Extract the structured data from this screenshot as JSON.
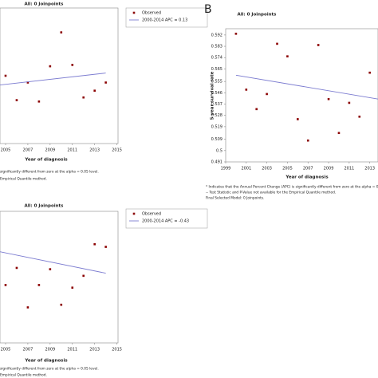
{
  "chart_data": [
    {
      "type": "scatter",
      "title": "All: 0 Joinpoints",
      "x_label": "Year of diagnosis",
      "xlim": [
        2004.5,
        2015.1
      ],
      "xticks": [
        2005,
        2007,
        2009,
        2011,
        2013,
        2015
      ],
      "ylim": [
        0,
        100
      ],
      "series": [
        {
          "name": "Observed",
          "type": "scatter",
          "color": "#8b0000",
          "x": [
            2005,
            2006,
            2007,
            2008,
            2009,
            2010,
            2011,
            2012,
            2013,
            2014
          ],
          "values": [
            50,
            32,
            45,
            31,
            57,
            82,
            58,
            34,
            39,
            45
          ]
        },
        {
          "name": "2000-2014 APC = 0.13",
          "type": "line",
          "color": "#7b7bd0",
          "x": [
            2000,
            2014
          ],
          "values": [
            39,
            52
          ]
        }
      ],
      "notes": [
        "significantly different from zero at the alpha = 0.05 level.",
        "Empirical Quantile method."
      ]
    },
    {
      "type": "scatter",
      "label": "B",
      "title": "All: 0 Joinpoints",
      "x_label": "Year of diagnosis",
      "y_label": "5 year survival rate",
      "xlim": [
        1999,
        2013.8
      ],
      "xticks": [
        1999,
        2001,
        2003,
        2005,
        2007,
        2009,
        2011,
        2013
      ],
      "ylim": [
        0.491,
        0.597
      ],
      "yticks": [
        0.491,
        0.5,
        0.509,
        0.519,
        0.528,
        0.537,
        0.546,
        0.555,
        0.565,
        0.574,
        0.583,
        0.592
      ],
      "series": [
        {
          "type": "scatter",
          "color": "#8b0000",
          "x": [
            2000,
            2001,
            2002,
            2003,
            2004,
            2005,
            2006,
            2007,
            2008,
            2009,
            2010,
            2011,
            2012,
            2013
          ],
          "values": [
            0.593,
            0.5485,
            0.533,
            0.545,
            0.585,
            0.575,
            0.525,
            0.508,
            0.584,
            0.541,
            0.514,
            0.538,
            0.527,
            0.562
          ]
        },
        {
          "type": "line",
          "color": "#7b7bd0",
          "x": [
            2000,
            2013.8
          ],
          "values": [
            0.56,
            0.541
          ]
        }
      ],
      "notes": [
        "* Indicates that the Annual Percent Change (APC) is significantly different from zero at the alpha = 0.05 level.",
        "-- Test Statistic and P-Value not available for the Empirical Quantile method.",
        "Final Selected Model: 0 Joinpoints."
      ]
    },
    {
      "type": "scatter",
      "title": "All: 0 Joinpoints",
      "x_label": "Year of diagnosis",
      "xlim": [
        2004.5,
        2015.1
      ],
      "xticks": [
        2005,
        2007,
        2009,
        2011,
        2013,
        2015
      ],
      "ylim": [
        0,
        100
      ],
      "series": [
        {
          "name": "Observed",
          "type": "scatter",
          "color": "#8b0000",
          "x": [
            2005,
            2006,
            2007,
            2008,
            2009,
            2010,
            2011,
            2012,
            2013,
            2014
          ],
          "values": [
            44,
            57,
            27,
            44,
            56,
            29,
            42,
            51,
            75,
            73
          ]
        },
        {
          "name": "2000-2014 APC = -0.43",
          "type": "line",
          "color": "#7b7bd0",
          "x": [
            2000,
            2014
          ],
          "values": [
            77,
            53
          ]
        }
      ],
      "notes": [
        "significantly different from zero at the alpha = 0.05 level.",
        "Empirical Quantile method."
      ]
    }
  ]
}
